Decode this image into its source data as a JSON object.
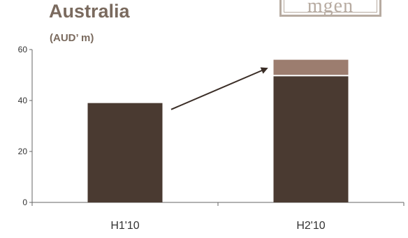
{
  "title": "Australia",
  "subtitle": "(AUD’ m)",
  "logo_text": "mgen",
  "chart_data": {
    "type": "bar",
    "stacked": true,
    "categories": [
      "H1'10",
      "H2'10"
    ],
    "series": [
      {
        "values": [
          39,
          49.5
        ],
        "color": "#4a3a31"
      },
      {
        "values": [
          0,
          6.5
        ],
        "color": "#9c7d6f"
      }
    ],
    "ylim": [
      0,
      60
    ],
    "yticks": [
      0,
      20,
      40,
      60
    ],
    "grid": false,
    "annotation": "arrow from H1'10 bar rising toward H2'10 bar"
  }
}
